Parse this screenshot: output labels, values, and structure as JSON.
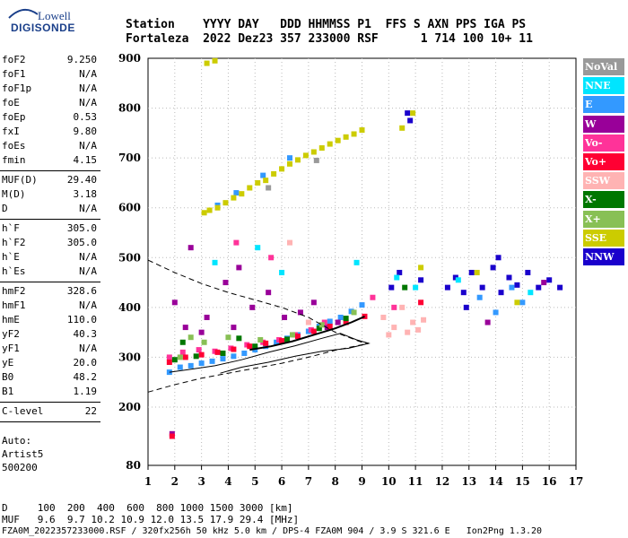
{
  "logo": {
    "line1": "Lowell",
    "line2": "DIGISONDE"
  },
  "header": {
    "row1": "Station    YYYY DAY   DDD HHMMSS P1  FFS S AXN PPS IGA PS",
    "row2": "Fortaleza  2022 Dez23 357 233000 RSF      1 714 100 10+ 11"
  },
  "params": [
    {
      "group": [
        {
          "label": "foF2",
          "value": "9.250"
        },
        {
          "label": "foF1",
          "value": "N/A"
        },
        {
          "label": "foF1p",
          "value": "N/A"
        },
        {
          "label": "foE",
          "value": "N/A"
        },
        {
          "label": "foEp",
          "value": "0.53"
        },
        {
          "label": "fxI",
          "value": "9.80"
        },
        {
          "label": "foEs",
          "value": "N/A"
        },
        {
          "label": "fmin",
          "value": "4.15"
        }
      ]
    },
    {
      "group": [
        {
          "label": "MUF(D)",
          "value": "29.40"
        },
        {
          "label": "M(D)",
          "value": "3.18"
        },
        {
          "label": "D",
          "value": "N/A"
        }
      ]
    },
    {
      "group": [
        {
          "label": "h`F",
          "value": "305.0"
        },
        {
          "label": "h`F2",
          "value": "305.0"
        },
        {
          "label": "h`E",
          "value": "N/A"
        },
        {
          "label": "h`Es",
          "value": "N/A"
        }
      ]
    },
    {
      "group": [
        {
          "label": "hmF2",
          "value": "328.6"
        },
        {
          "label": "hmF1",
          "value": "N/A"
        },
        {
          "label": "hmE",
          "value": "110.0"
        },
        {
          "label": "yF2",
          "value": "40.3"
        },
        {
          "label": "yF1",
          "value": "N/A"
        },
        {
          "label": "yE",
          "value": "20.0"
        },
        {
          "label": "B0",
          "value": "48.2"
        },
        {
          "label": "B1",
          "value": "1.19"
        }
      ]
    },
    {
      "group": [
        {
          "label": "C-level",
          "value": "22"
        }
      ]
    }
  ],
  "auto": {
    "line1": "Auto:",
    "line2": "Artist5",
    "line3": "500200"
  },
  "legend": [
    {
      "label": "NoVal",
      "color": "#999999"
    },
    {
      "label": "NNE",
      "color": "#00e5ff"
    },
    {
      "label": "E",
      "color": "#3399ff"
    },
    {
      "label": "W",
      "color": "#990099"
    },
    {
      "label": "Vo-",
      "color": "#ff3399"
    },
    {
      "label": "Vo+",
      "color": "#ff0033"
    },
    {
      "label": "SSW",
      "color": "#ffb3b3"
    },
    {
      "label": "X-",
      "color": "#007700"
    },
    {
      "label": "X+",
      "color": "#88c055"
    },
    {
      "label": "SSE",
      "color": "#cccc00"
    },
    {
      "label": "NNW",
      "color": "#1a00cc"
    }
  ],
  "footer": {
    "row_d": "D     100  200  400  600  800 1000 1500 3000 [km]",
    "row_muf": "MUF   9.6  9.7 10.2 10.9 12.0 13.5 17.9 29.4 [MHz]",
    "row_info": "FZA0M_2022357233000.RSF / 320fx256h 50 kHz 5.0 km / DPS-4 FZA0M 904 / 3.9 S 321.6 E   Ion2Png 1.3.20"
  },
  "chart_data": {
    "type": "scatter",
    "xlim": [
      1,
      17
    ],
    "ylim": [
      80,
      900
    ],
    "x_ticks": [
      1,
      2,
      3,
      4,
      5,
      6,
      7,
      8,
      9,
      10,
      11,
      12,
      13,
      14,
      15,
      16,
      17
    ],
    "y_ticks": [
      80,
      200,
      300,
      400,
      500,
      600,
      700,
      800,
      900
    ],
    "y_tick_labels": [
      "80",
      "200",
      "300",
      "400",
      "500",
      "600",
      "700",
      "800",
      "900"
    ],
    "grid": true,
    "series": [
      {
        "name": "NNW",
        "points": [
          [
            12.2,
            440
          ],
          [
            12.5,
            460
          ],
          [
            12.8,
            430
          ],
          [
            13.1,
            470
          ],
          [
            13.5,
            440
          ],
          [
            13.9,
            480
          ],
          [
            14.2,
            430
          ],
          [
            14.5,
            460
          ],
          [
            14.8,
            445
          ],
          [
            15.2,
            470
          ],
          [
            15.6,
            440
          ],
          [
            16.0,
            455
          ],
          [
            16.4,
            440
          ],
          [
            14.1,
            500
          ],
          [
            12.9,
            400
          ],
          [
            10.8,
            775
          ],
          [
            10.7,
            790
          ],
          [
            11.2,
            455
          ],
          [
            10.1,
            440
          ],
          [
            10.4,
            470
          ]
        ]
      },
      {
        "name": "E",
        "points": [
          [
            1.8,
            270
          ],
          [
            2.2,
            280
          ],
          [
            2.6,
            283
          ],
          [
            3.0,
            288
          ],
          [
            3.4,
            292
          ],
          [
            3.8,
            297
          ],
          [
            4.2,
            302
          ],
          [
            4.6,
            308
          ],
          [
            5.0,
            315
          ],
          [
            5.4,
            322
          ],
          [
            5.8,
            330
          ],
          [
            6.2,
            338
          ],
          [
            6.6,
            345
          ],
          [
            7.0,
            352
          ],
          [
            7.4,
            362
          ],
          [
            7.8,
            372
          ],
          [
            8.2,
            380
          ],
          [
            8.6,
            392
          ],
          [
            9.0,
            405
          ],
          [
            3.6,
            605
          ],
          [
            4.3,
            630
          ],
          [
            5.3,
            665
          ],
          [
            6.3,
            700
          ],
          [
            14.0,
            390
          ],
          [
            15.0,
            410
          ],
          [
            14.6,
            440
          ],
          [
            13.4,
            420
          ]
        ]
      },
      {
        "name": "NNE",
        "points": [
          [
            3.5,
            490
          ],
          [
            5.1,
            520
          ],
          [
            6.0,
            470
          ],
          [
            8.8,
            490
          ],
          [
            10.3,
            460
          ],
          [
            11.0,
            440
          ],
          [
            12.6,
            455
          ],
          [
            15.3,
            430
          ]
        ]
      },
      {
        "name": "W",
        "points": [
          [
            2.0,
            410
          ],
          [
            2.6,
            520
          ],
          [
            3.2,
            380
          ],
          [
            3.9,
            450
          ],
          [
            4.4,
            480
          ],
          [
            4.9,
            400
          ],
          [
            5.5,
            430
          ],
          [
            6.1,
            380
          ],
          [
            6.7,
            390
          ],
          [
            7.2,
            410
          ],
          [
            7.7,
            360
          ],
          [
            8.1,
            370
          ],
          [
            3.0,
            350
          ],
          [
            2.4,
            360
          ],
          [
            4.2,
            360
          ],
          [
            1.9,
            145
          ],
          [
            13.7,
            370
          ],
          [
            15.8,
            450
          ]
        ]
      },
      {
        "name": "Vo-",
        "points": [
          [
            1.8,
            300
          ],
          [
            2.3,
            310
          ],
          [
            2.9,
            315
          ],
          [
            3.5,
            312
          ],
          [
            4.1,
            318
          ],
          [
            4.7,
            325
          ],
          [
            5.3,
            330
          ],
          [
            5.9,
            335
          ],
          [
            6.5,
            345
          ],
          [
            7.1,
            355
          ],
          [
            7.6,
            370
          ],
          [
            9.4,
            420
          ],
          [
            10.2,
            400
          ],
          [
            4.3,
            530
          ],
          [
            5.6,
            500
          ]
        ]
      },
      {
        "name": "Vo+",
        "points": [
          [
            1.8,
            290
          ],
          [
            2.4,
            300
          ],
          [
            3.0,
            305
          ],
          [
            3.6,
            310
          ],
          [
            4.2,
            316
          ],
          [
            4.8,
            322
          ],
          [
            5.4,
            328
          ],
          [
            6.0,
            333
          ],
          [
            6.6,
            342
          ],
          [
            7.2,
            352
          ],
          [
            7.8,
            362
          ],
          [
            8.4,
            370
          ],
          [
            9.1,
            382
          ],
          [
            1.9,
            140
          ],
          [
            11.2,
            410
          ]
        ]
      },
      {
        "name": "SSW",
        "points": [
          [
            9.8,
            380
          ],
          [
            10.2,
            360
          ],
          [
            10.5,
            400
          ],
          [
            10.9,
            370
          ],
          [
            11.3,
            375
          ],
          [
            10.0,
            345
          ],
          [
            10.7,
            350
          ],
          [
            11.1,
            355
          ],
          [
            6.3,
            530
          ],
          [
            7.0,
            370
          ]
        ]
      },
      {
        "name": "X-",
        "points": [
          [
            2.0,
            295
          ],
          [
            2.8,
            302
          ],
          [
            3.8,
            308
          ],
          [
            5.0,
            322
          ],
          [
            6.2,
            336
          ],
          [
            7.4,
            358
          ],
          [
            8.4,
            378
          ],
          [
            2.3,
            330
          ],
          [
            4.4,
            338
          ],
          [
            10.6,
            440
          ]
        ]
      },
      {
        "name": "X+",
        "points": [
          [
            2.2,
            300
          ],
          [
            3.1,
            330
          ],
          [
            4.0,
            340
          ],
          [
            5.2,
            335
          ],
          [
            6.4,
            345
          ],
          [
            7.5,
            365
          ],
          [
            8.7,
            390
          ],
          [
            2.6,
            340
          ]
        ]
      },
      {
        "name": "SSE",
        "points": [
          [
            3.1,
            590
          ],
          [
            3.3,
            595
          ],
          [
            3.6,
            600
          ],
          [
            3.9,
            610
          ],
          [
            4.2,
            620
          ],
          [
            4.5,
            628
          ],
          [
            4.8,
            640
          ],
          [
            5.1,
            650
          ],
          [
            5.4,
            655
          ],
          [
            5.7,
            668
          ],
          [
            6.0,
            678
          ],
          [
            6.3,
            688
          ],
          [
            6.6,
            696
          ],
          [
            6.9,
            705
          ],
          [
            7.2,
            712
          ],
          [
            7.5,
            720
          ],
          [
            7.8,
            728
          ],
          [
            8.1,
            735
          ],
          [
            8.4,
            742
          ],
          [
            8.7,
            748
          ],
          [
            9.0,
            756
          ],
          [
            3.2,
            890
          ],
          [
            3.5,
            895
          ],
          [
            10.5,
            760
          ],
          [
            10.9,
            790
          ],
          [
            11.2,
            480
          ],
          [
            13.3,
            470
          ],
          [
            14.8,
            410
          ]
        ]
      },
      {
        "name": "NoVal",
        "points": [
          [
            5.5,
            640
          ],
          [
            7.3,
            695
          ]
        ]
      }
    ],
    "lines": [
      {
        "kind": "profile-solid",
        "points": [
          [
            1.8,
            270
          ],
          [
            2.5,
            275
          ],
          [
            3.5,
            283
          ],
          [
            4.5,
            295
          ],
          [
            5.5,
            310
          ],
          [
            6.5,
            323
          ],
          [
            7.5,
            338
          ],
          [
            8.2,
            348
          ],
          [
            8.8,
            335
          ],
          [
            9.25,
            328
          ],
          [
            8.5,
            318
          ],
          [
            7.5,
            312
          ],
          [
            6.5,
            302
          ],
          [
            5.5,
            290
          ],
          [
            4.5,
            280
          ],
          [
            3.7,
            268
          ]
        ]
      },
      {
        "kind": "profile-dashed",
        "points": [
          [
            1,
            495
          ],
          [
            2,
            470
          ],
          [
            3,
            448
          ],
          [
            4,
            430
          ],
          [
            5,
            415
          ],
          [
            6,
            400
          ],
          [
            7,
            380
          ],
          [
            8,
            350
          ],
          [
            9,
            330
          ],
          [
            9.25,
            328
          ]
        ]
      },
      {
        "kind": "profile-dashed-low",
        "points": [
          [
            1,
            230
          ],
          [
            2,
            245
          ],
          [
            3,
            258
          ],
          [
            4,
            268
          ],
          [
            5,
            278
          ],
          [
            6,
            288
          ],
          [
            7,
            300
          ],
          [
            8,
            314
          ],
          [
            9,
            325
          ],
          [
            9.25,
            328
          ]
        ]
      },
      {
        "kind": "trace-black",
        "points": [
          [
            4.8,
            315
          ],
          [
            5.6,
            322
          ],
          [
            6.4,
            332
          ],
          [
            7.2,
            345
          ],
          [
            8.0,
            358
          ],
          [
            8.6,
            370
          ],
          [
            9.1,
            382
          ]
        ]
      }
    ]
  }
}
